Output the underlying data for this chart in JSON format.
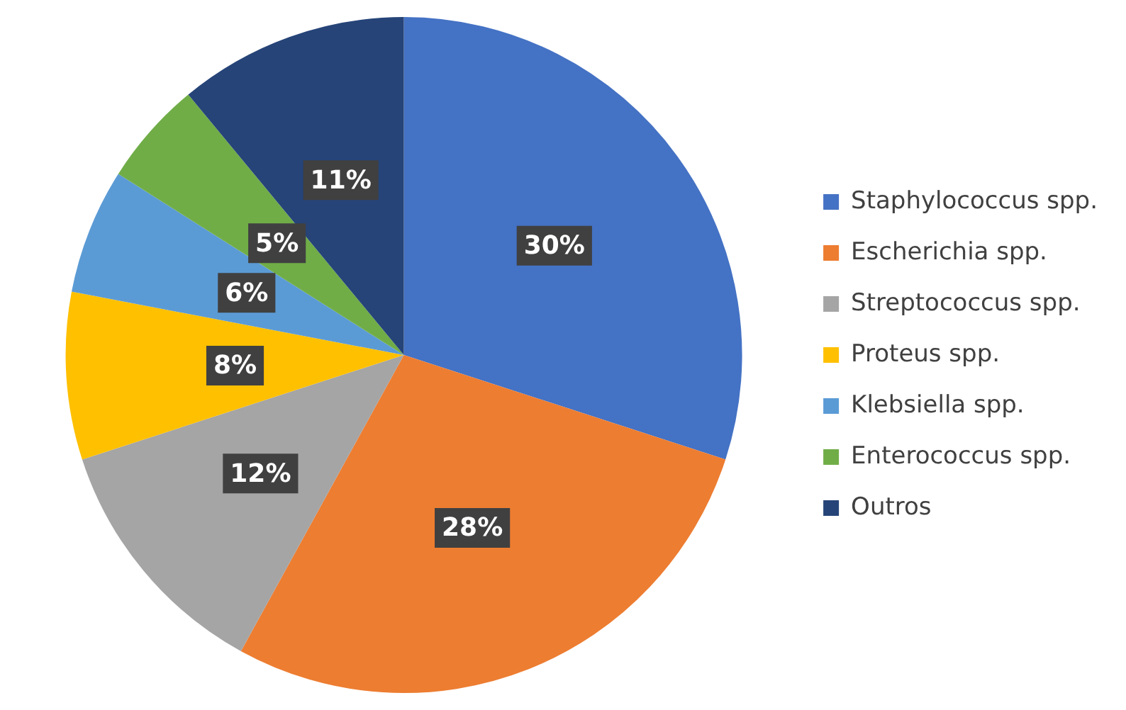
{
  "chart_data": {
    "type": "pie",
    "categories": [
      "Staphylococcus spp.",
      "Escherichia spp.",
      "Streptococcus spp.",
      "Proteus spp.",
      "Klebsiella spp.",
      "Enterococcus spp.",
      "Outros"
    ],
    "values": [
      30,
      28,
      12,
      8,
      6,
      5,
      11
    ],
    "colors": [
      "#4472c4",
      "#ed7d31",
      "#a5a5a5",
      "#ffc000",
      "#5b9bd5",
      "#70ad47",
      "#264478"
    ],
    "value_labels": [
      "30%",
      "28%",
      "12%",
      "8%",
      "6%",
      "5%",
      "11%"
    ],
    "legend": "right"
  }
}
